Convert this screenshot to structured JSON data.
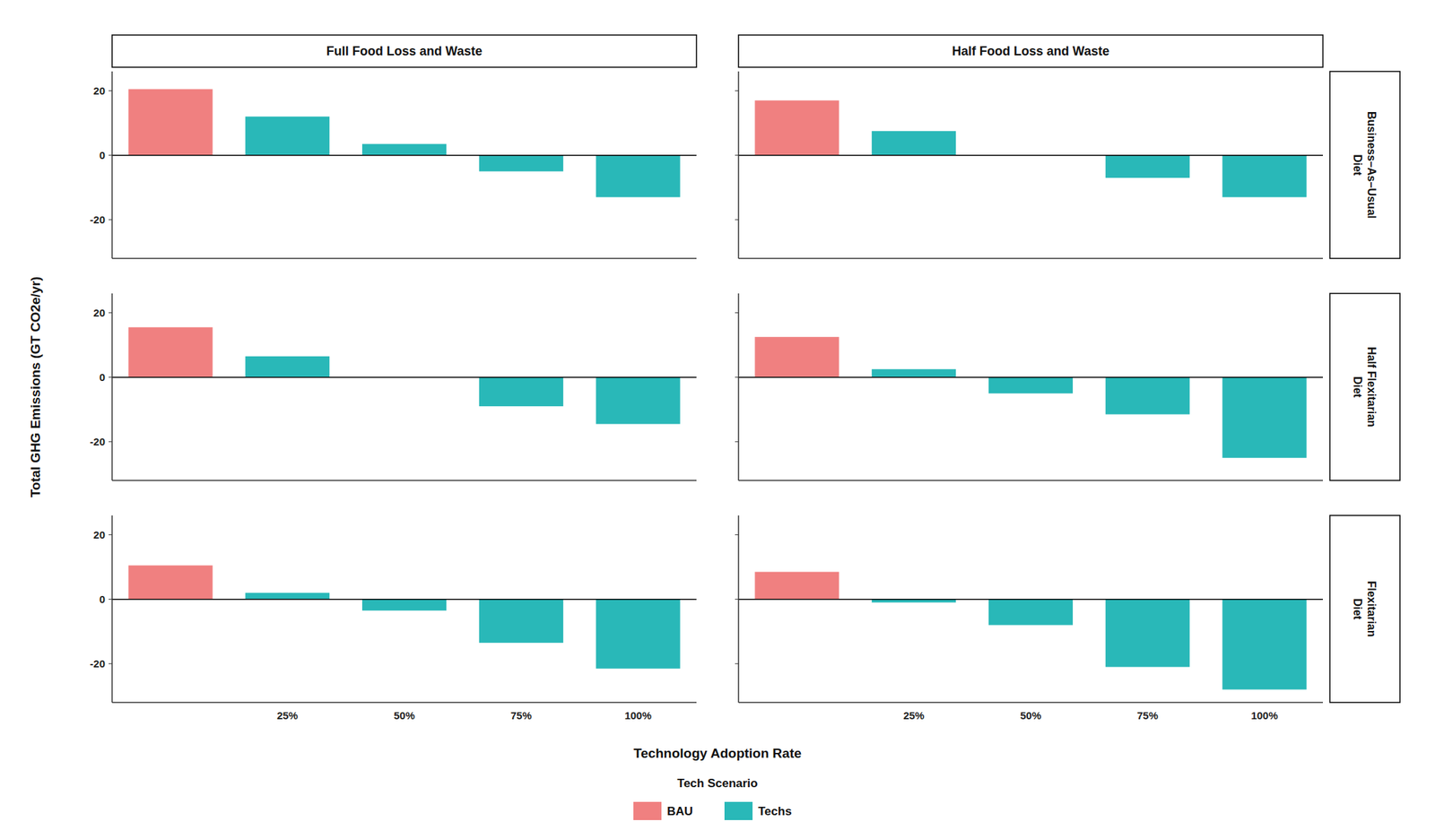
{
  "chart_data": [
    {
      "type": "bar",
      "title": "Full Food Loss and Waste",
      "y_label": "Total GHG Emissions (GT CO2e/yr)",
      "x_label": "Technology Adoption Rate",
      "legend": "bottom",
      "legend_title": "Tech Scenario",
      "categories": [
        null,
        "25%",
        "50%",
        "75%",
        "100%"
      ],
      "series": [
        {
          "name": "BAU",
          "color": "#F08080",
          "values": [
            20.5,
            null,
            null,
            null,
            null
          ]
        },
        {
          "name": "Techs",
          "color": "#29B8B8",
          "values": [
            null,
            12.0,
            3.5,
            -5.0,
            -13.0
          ]
        }
      ],
      "ylim": [
        -32,
        26
      ],
      "yticks": [
        -20,
        0,
        20
      ],
      "tick_labels": "y"
    },
    {
      "type": "bar",
      "title": "Half Food Loss and Waste",
      "annotations": [
        "Business–As–Usual\nDiet"
      ],
      "categories": [
        null,
        "25%",
        "50%",
        "75%",
        "100%"
      ],
      "series": [
        {
          "name": "BAU",
          "color": "#F08080",
          "values": [
            17.0,
            null,
            null,
            null,
            null
          ]
        },
        {
          "name": "Techs",
          "color": "#29B8B8",
          "values": [
            null,
            7.5,
            null,
            -7.0,
            -13.0
          ]
        }
      ],
      "ylim": [
        -32,
        26
      ],
      "yticks": [
        -20,
        0,
        20
      ],
      "tick_labels": false
    },
    {
      "type": "bar",
      "categories": [
        null,
        "25%",
        "50%",
        "75%",
        "100%"
      ],
      "series": [
        {
          "name": "BAU",
          "color": "#F08080",
          "values": [
            15.5,
            null,
            null,
            null,
            null
          ]
        },
        {
          "name": "Techs",
          "color": "#29B8B8",
          "values": [
            null,
            6.5,
            0.0,
            -9.0,
            -14.5
          ]
        }
      ],
      "ylim": [
        -32,
        26
      ],
      "yticks": [
        -20,
        0,
        20
      ],
      "tick_labels": "y"
    },
    {
      "type": "bar",
      "annotations": [
        "Half Flexitarian\nDiet"
      ],
      "categories": [
        null,
        "25%",
        "50%",
        "75%",
        "100%"
      ],
      "series": [
        {
          "name": "BAU",
          "color": "#F08080",
          "values": [
            12.5,
            null,
            null,
            null,
            null
          ]
        },
        {
          "name": "Techs",
          "color": "#29B8B8",
          "values": [
            null,
            2.5,
            -5.0,
            -11.5,
            -25.0
          ]
        }
      ],
      "ylim": [
        -32,
        26
      ],
      "yticks": [
        -20,
        0,
        20
      ],
      "tick_labels": false
    },
    {
      "type": "bar",
      "categories": [
        null,
        "25%",
        "50%",
        "75%",
        "100%"
      ],
      "series": [
        {
          "name": "BAU",
          "color": "#F08080",
          "values": [
            10.5,
            null,
            null,
            null,
            null
          ]
        },
        {
          "name": "Techs",
          "color": "#29B8B8",
          "values": [
            null,
            2.0,
            -3.5,
            -13.5,
            -21.5
          ]
        }
      ],
      "ylim": [
        -32,
        26
      ],
      "yticks": [
        -20,
        0,
        20
      ],
      "tick_labels": true
    },
    {
      "type": "bar",
      "annotations": [
        "Flexitarian\nDiet"
      ],
      "categories": [
        null,
        "25%",
        "50%",
        "75%",
        "100%"
      ],
      "series": [
        {
          "name": "BAU",
          "color": "#F08080",
          "values": [
            8.5,
            null,
            null,
            null,
            null
          ]
        },
        {
          "name": "Techs",
          "color": "#29B8B8",
          "values": [
            null,
            -1.0,
            -8.0,
            -21.0,
            -28.0
          ]
        }
      ],
      "ylim": [
        -32,
        26
      ],
      "yticks": [
        -20,
        0,
        20
      ],
      "tick_labels": "x"
    }
  ]
}
